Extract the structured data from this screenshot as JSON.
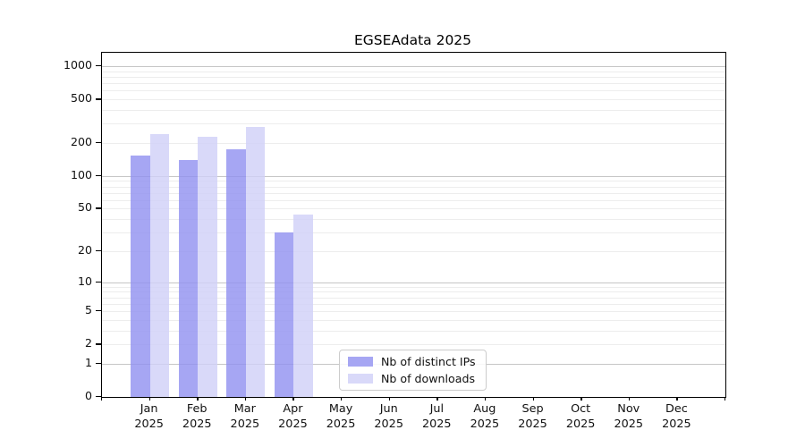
{
  "chart_data": {
    "type": "bar",
    "title": "EGSEAdata 2025",
    "year": "2025",
    "categories": [
      "Jan",
      "Feb",
      "Mar",
      "Apr",
      "May",
      "Jun",
      "Jul",
      "Aug",
      "Sep",
      "Oct",
      "Nov",
      "Dec"
    ],
    "series": [
      {
        "name": "Nb of distinct IPs",
        "color": "#a6a6f3",
        "values": [
          155,
          140,
          175,
          30,
          0,
          0,
          0,
          0,
          0,
          0,
          0,
          0
        ]
      },
      {
        "name": "Nb of downloads",
        "color": "#d9d9f9",
        "values": [
          240,
          230,
          280,
          44,
          0,
          0,
          0,
          0,
          0,
          0,
          0,
          0
        ]
      }
    ],
    "yscale": "log1p",
    "ylim": [
      0,
      1325
    ],
    "yticks": [
      0,
      1,
      2,
      5,
      10,
      20,
      50,
      100,
      200,
      500,
      1000
    ],
    "gridlines": {
      "major": [
        1,
        10,
        100,
        1000
      ],
      "minor": [
        2,
        3,
        4,
        5,
        6,
        7,
        8,
        9,
        20,
        30,
        40,
        50,
        60,
        70,
        80,
        90,
        200,
        300,
        400,
        500,
        600,
        700,
        800,
        900
      ]
    },
    "legend_position": "bottom-center-inside",
    "grid": "horizontal"
  }
}
